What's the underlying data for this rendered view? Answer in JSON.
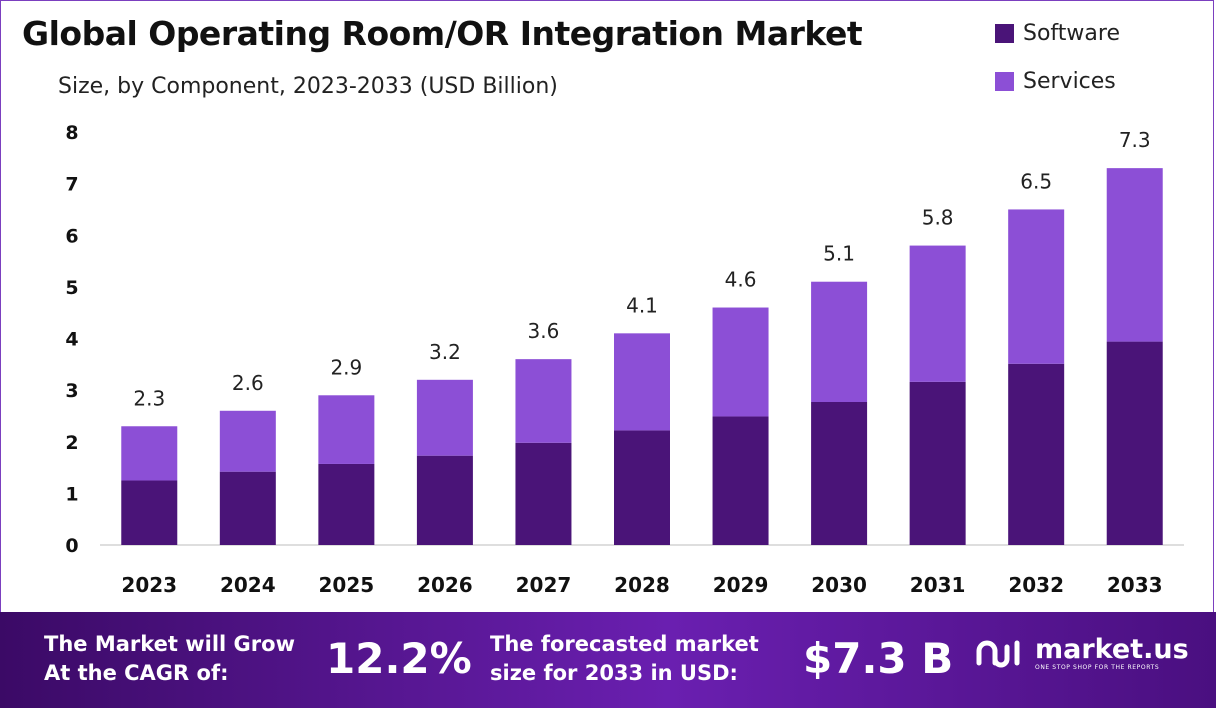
{
  "title": "Global Operating Room/OR Integration Market",
  "subtitle": "Size, by Component, 2023-2033 (USD Billion)",
  "colors": {
    "software": "#4a1478",
    "services": "#8c4fd6",
    "axis": "#bdbdbd"
  },
  "chart_data": {
    "type": "bar",
    "stacked": true,
    "categories": [
      "2023",
      "2024",
      "2025",
      "2026",
      "2027",
      "2028",
      "2029",
      "2030",
      "2031",
      "2032",
      "2033"
    ],
    "series": [
      {
        "name": "Software",
        "values": [
          1.25,
          1.42,
          1.57,
          1.73,
          1.98,
          2.22,
          2.49,
          2.77,
          3.16,
          3.51,
          3.94
        ]
      },
      {
        "name": "Services",
        "values": [
          1.05,
          1.18,
          1.33,
          1.47,
          1.62,
          1.88,
          2.11,
          2.33,
          2.64,
          2.99,
          3.36
        ]
      }
    ],
    "totals": [
      2.3,
      2.6,
      2.9,
      3.2,
      3.6,
      4.1,
      4.6,
      5.1,
      5.8,
      6.5,
      7.3
    ],
    "total_labels": [
      "2.3",
      "2.6",
      "2.9",
      "3.2",
      "3.6",
      "4.1",
      "4.6",
      "5.1",
      "5.8",
      "6.5",
      "7.3"
    ],
    "yticks": [
      "0",
      "1",
      "2",
      "3",
      "4",
      "5",
      "6",
      "7",
      "8"
    ],
    "ylim": [
      0,
      8
    ],
    "legend": "top-right",
    "grid": false
  },
  "footer": {
    "cagr_line1": "The Market will Grow",
    "cagr_line2": "At the CAGR of:",
    "cagr_value": "12.2%",
    "forecast_line1": "The forecasted market",
    "forecast_line2": "size for 2033 in USD:",
    "forecast_value": "$7.3 B",
    "brand_name": "market.us",
    "brand_tagline": "ONE STOP SHOP FOR THE REPORTS"
  }
}
